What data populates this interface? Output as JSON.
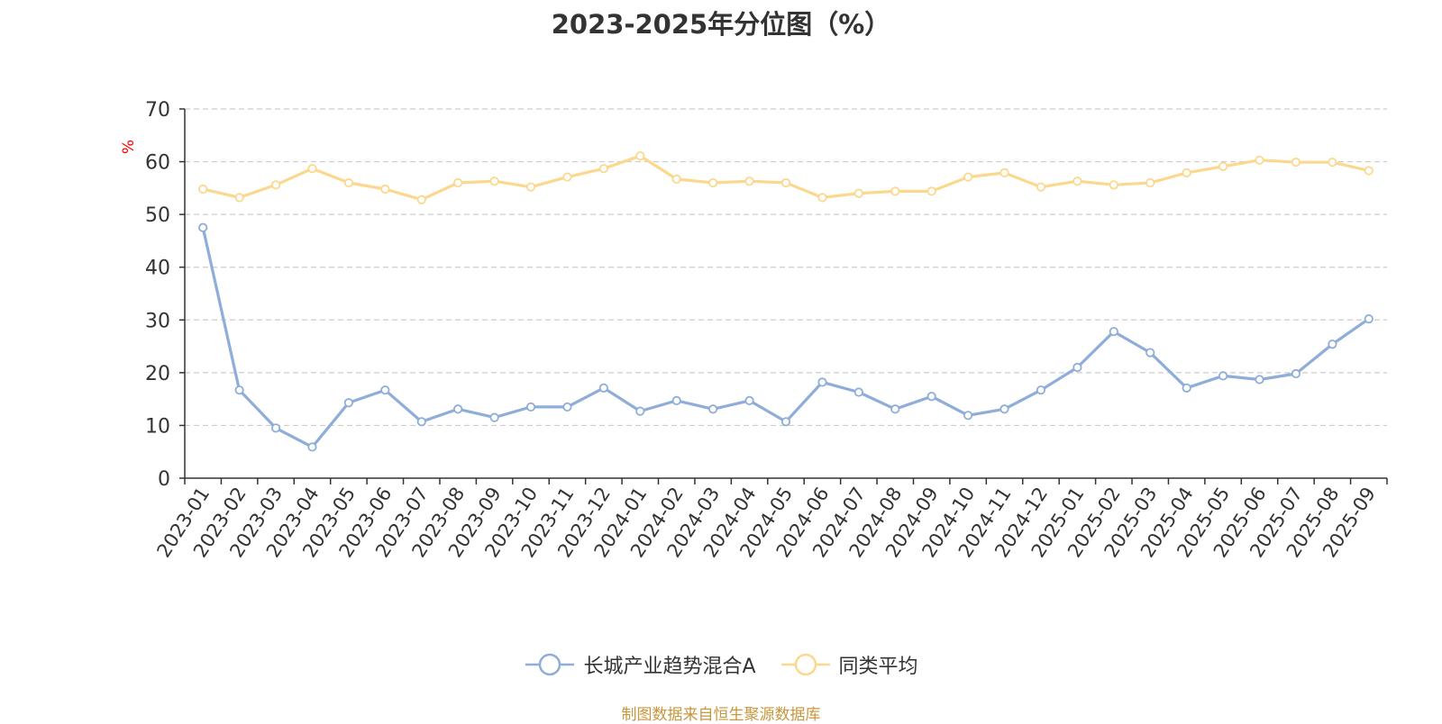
{
  "chart_data": {
    "type": "line",
    "title": "2023-2025年分位图（%）",
    "ylabel": "%",
    "xlabel": "",
    "ylim": [
      0,
      70
    ],
    "yticks": [
      "0",
      "10",
      "20",
      "30",
      "40",
      "50",
      "60",
      "70"
    ],
    "grid": true,
    "legend_position": "bottom",
    "categories": [
      "2023-01",
      "2023-02",
      "2023-03",
      "2023-04",
      "2023-05",
      "2023-06",
      "2023-07",
      "2023-08",
      "2023-09",
      "2023-10",
      "2023-11",
      "2023-12",
      "2024-01",
      "2024-02",
      "2024-03",
      "2024-04",
      "2024-05",
      "2024-06",
      "2024-07",
      "2024-08",
      "2024-09",
      "2024-10",
      "2024-11",
      "2024-12",
      "2025-01",
      "2025-02",
      "2025-03",
      "2025-04",
      "2025-05",
      "2025-06",
      "2025-07",
      "2025-08",
      "2025-09"
    ],
    "series": [
      {
        "name": "长城产业趋势混合A",
        "color": "#8fadd9",
        "values": [
          47.5,
          16.7,
          9.5,
          5.9,
          14.3,
          16.7,
          10.7,
          13.1,
          11.5,
          13.5,
          13.5,
          17.1,
          12.7,
          14.7,
          13.1,
          14.7,
          10.7,
          18.2,
          16.3,
          13.1,
          15.5,
          11.9,
          13.1,
          16.7,
          21.0,
          27.8,
          23.8,
          17.1,
          19.4,
          18.7,
          19.8,
          25.4,
          30.2
        ]
      },
      {
        "name": "同类平均",
        "color": "#fbd88e",
        "values": [
          54.8,
          53.2,
          55.6,
          58.7,
          56.0,
          54.8,
          52.8,
          56.0,
          56.3,
          55.2,
          57.1,
          58.7,
          61.1,
          56.7,
          56.0,
          56.3,
          56.0,
          53.2,
          54.0,
          54.4,
          54.4,
          57.1,
          57.9,
          55.2,
          56.3,
          55.6,
          56.0,
          57.9,
          59.1,
          60.3,
          59.9,
          59.9,
          58.3
        ]
      }
    ]
  },
  "source_text": "制图数据来自恒生聚源数据库"
}
